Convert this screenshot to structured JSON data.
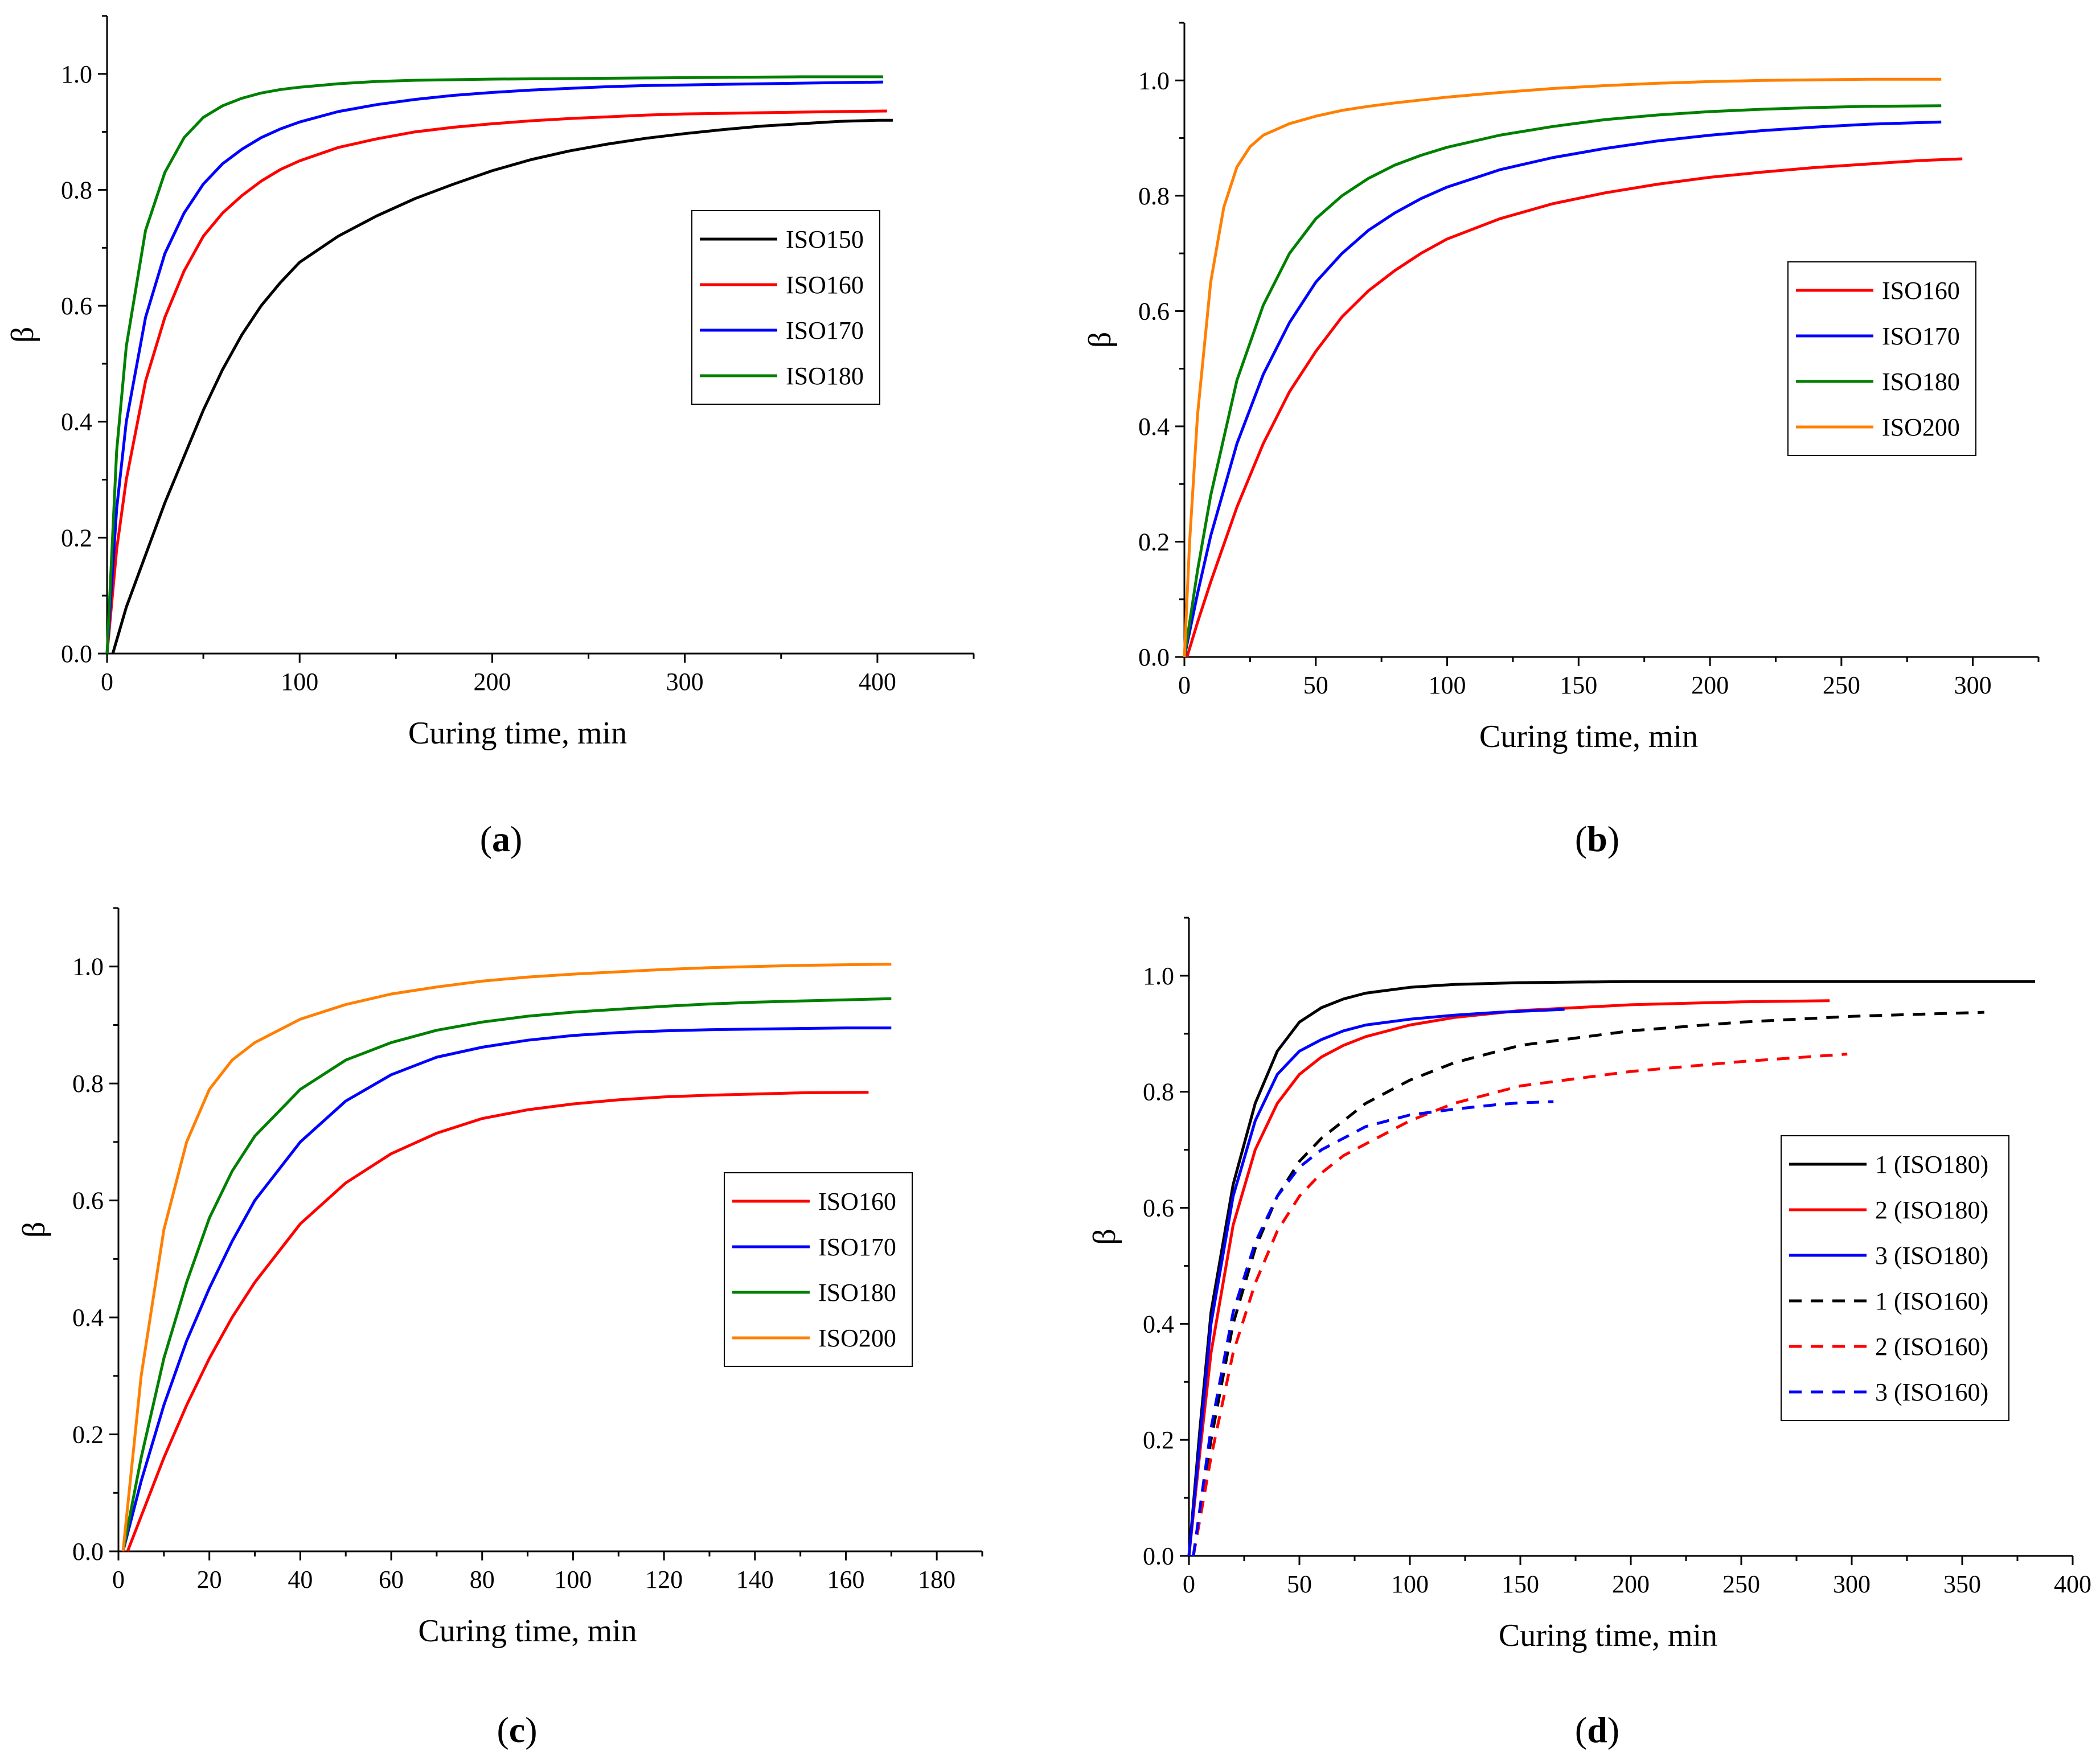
{
  "figure": {
    "panel_labels": [
      "a",
      "b",
      "c",
      "d"
    ]
  },
  "chart_data": [
    {
      "panel": "a",
      "type": "line",
      "xlabel": "Curing time, min",
      "ylabel": "β",
      "xlim": [
        0,
        450
      ],
      "ylim": [
        0,
        1.1
      ],
      "xticks": [
        0,
        100,
        200,
        300,
        400
      ],
      "yticks": [
        0.0,
        0.2,
        0.4,
        0.6,
        0.8,
        1.0
      ],
      "legend_position": "right-middle",
      "series": [
        {
          "name": "ISO150",
          "color": "#000000",
          "dash": false,
          "x": [
            3,
            10,
            20,
            30,
            40,
            50,
            60,
            70,
            80,
            90,
            100,
            120,
            140,
            160,
            180,
            200,
            220,
            240,
            260,
            280,
            300,
            320,
            340,
            360,
            380,
            400,
            408
          ],
          "y": [
            0,
            0.08,
            0.17,
            0.26,
            0.34,
            0.42,
            0.49,
            0.55,
            0.6,
            0.64,
            0.675,
            0.72,
            0.755,
            0.785,
            0.81,
            0.833,
            0.852,
            0.867,
            0.879,
            0.889,
            0.897,
            0.904,
            0.91,
            0.914,
            0.918,
            0.92,
            0.92
          ]
        },
        {
          "name": "ISO160",
          "color": "#ff0000",
          "dash": false,
          "x": [
            0,
            5,
            10,
            20,
            30,
            40,
            50,
            60,
            70,
            80,
            90,
            100,
            120,
            140,
            160,
            180,
            200,
            220,
            240,
            260,
            280,
            300,
            320,
            340,
            360,
            380,
            405
          ],
          "y": [
            0,
            0.18,
            0.3,
            0.47,
            0.58,
            0.66,
            0.72,
            0.76,
            0.79,
            0.815,
            0.835,
            0.85,
            0.873,
            0.888,
            0.9,
            0.908,
            0.914,
            0.919,
            0.923,
            0.926,
            0.929,
            0.931,
            0.932,
            0.933,
            0.934,
            0.935,
            0.936
          ]
        },
        {
          "name": "ISO170",
          "color": "#0000ff",
          "dash": false,
          "x": [
            0,
            5,
            10,
            20,
            30,
            40,
            50,
            60,
            70,
            80,
            90,
            100,
            120,
            140,
            160,
            180,
            200,
            220,
            240,
            260,
            280,
            300,
            320,
            340,
            360,
            380,
            403
          ],
          "y": [
            0,
            0.25,
            0.4,
            0.58,
            0.69,
            0.76,
            0.81,
            0.845,
            0.87,
            0.89,
            0.905,
            0.917,
            0.935,
            0.947,
            0.956,
            0.963,
            0.968,
            0.972,
            0.975,
            0.978,
            0.98,
            0.981,
            0.982,
            0.983,
            0.984,
            0.985,
            0.986
          ]
        },
        {
          "name": "ISO180",
          "color": "#008000",
          "dash": false,
          "x": [
            0,
            5,
            10,
            20,
            30,
            40,
            50,
            60,
            70,
            80,
            90,
            100,
            120,
            140,
            160,
            180,
            200,
            240,
            280,
            320,
            360,
            403
          ],
          "y": [
            0,
            0.35,
            0.53,
            0.73,
            0.83,
            0.89,
            0.925,
            0.945,
            0.958,
            0.967,
            0.973,
            0.977,
            0.983,
            0.987,
            0.989,
            0.99,
            0.991,
            0.992,
            0.993,
            0.994,
            0.995,
            0.995
          ]
        }
      ]
    },
    {
      "panel": "b",
      "type": "line",
      "xlabel": "Curing time, min",
      "ylabel": "β",
      "xlim": [
        0,
        325
      ],
      "ylim": [
        0,
        1.1
      ],
      "xticks": [
        0,
        50,
        100,
        150,
        200,
        250,
        300
      ],
      "yticks": [
        0.0,
        0.2,
        0.4,
        0.6,
        0.8,
        1.0
      ],
      "legend_position": "right-middle",
      "series": [
        {
          "name": "ISO160",
          "color": "#ff0000",
          "dash": false,
          "x": [
            1,
            5,
            10,
            20,
            30,
            40,
            50,
            60,
            70,
            80,
            90,
            100,
            120,
            140,
            160,
            180,
            200,
            220,
            240,
            260,
            280,
            296
          ],
          "y": [
            0,
            0.06,
            0.13,
            0.26,
            0.37,
            0.46,
            0.53,
            0.59,
            0.635,
            0.67,
            0.7,
            0.725,
            0.76,
            0.786,
            0.805,
            0.82,
            0.832,
            0.841,
            0.849,
            0.855,
            0.861,
            0.864
          ]
        },
        {
          "name": "ISO170",
          "color": "#0000ff",
          "dash": false,
          "x": [
            0,
            5,
            10,
            20,
            30,
            40,
            50,
            60,
            70,
            80,
            90,
            100,
            120,
            140,
            160,
            180,
            200,
            220,
            240,
            260,
            288
          ],
          "y": [
            0,
            0.11,
            0.21,
            0.37,
            0.49,
            0.58,
            0.65,
            0.7,
            0.74,
            0.77,
            0.795,
            0.815,
            0.845,
            0.866,
            0.882,
            0.895,
            0.905,
            0.913,
            0.919,
            0.924,
            0.928
          ]
        },
        {
          "name": "ISO180",
          "color": "#008000",
          "dash": false,
          "x": [
            0,
            5,
            10,
            20,
            30,
            40,
            50,
            60,
            70,
            80,
            90,
            100,
            120,
            140,
            160,
            180,
            200,
            220,
            240,
            260,
            288
          ],
          "y": [
            0,
            0.15,
            0.28,
            0.48,
            0.61,
            0.7,
            0.76,
            0.8,
            0.83,
            0.853,
            0.87,
            0.884,
            0.905,
            0.92,
            0.932,
            0.94,
            0.946,
            0.95,
            0.953,
            0.955,
            0.956
          ]
        },
        {
          "name": "ISO200",
          "color": "#ff8000",
          "dash": false,
          "x": [
            0,
            2,
            5,
            10,
            15,
            20,
            25,
            30,
            40,
            50,
            60,
            70,
            80,
            100,
            120,
            140,
            160,
            180,
            200,
            220,
            240,
            260,
            288
          ],
          "y": [
            0,
            0.2,
            0.42,
            0.65,
            0.78,
            0.85,
            0.885,
            0.905,
            0.925,
            0.938,
            0.948,
            0.955,
            0.961,
            0.971,
            0.979,
            0.986,
            0.991,
            0.995,
            0.998,
            1.0,
            1.001,
            1.002,
            1.002
          ]
        }
      ]
    },
    {
      "panel": "c",
      "type": "line",
      "xlabel": "Curing time, min",
      "ylabel": "β",
      "xlim": [
        0,
        190
      ],
      "ylim": [
        0,
        1.1
      ],
      "xticks": [
        0,
        20,
        40,
        60,
        80,
        100,
        120,
        140,
        160,
        180
      ],
      "yticks": [
        0.0,
        0.2,
        0.4,
        0.6,
        0.8,
        1.0
      ],
      "legend_position": "right-middle",
      "series": [
        {
          "name": "ISO160",
          "color": "#ff0000",
          "dash": false,
          "x": [
            2,
            5,
            10,
            15,
            20,
            25,
            30,
            40,
            50,
            60,
            70,
            80,
            90,
            100,
            110,
            120,
            130,
            140,
            150,
            165
          ],
          "y": [
            0,
            0.06,
            0.16,
            0.25,
            0.33,
            0.4,
            0.46,
            0.56,
            0.63,
            0.68,
            0.715,
            0.74,
            0.755,
            0.765,
            0.772,
            0.777,
            0.78,
            0.782,
            0.784,
            0.785
          ]
        },
        {
          "name": "ISO170",
          "color": "#0000ff",
          "dash": false,
          "x": [
            1,
            5,
            10,
            15,
            20,
            25,
            30,
            40,
            50,
            60,
            70,
            80,
            90,
            100,
            110,
            120,
            130,
            140,
            150,
            160,
            170
          ],
          "y": [
            0,
            0.12,
            0.25,
            0.36,
            0.45,
            0.53,
            0.6,
            0.7,
            0.77,
            0.815,
            0.845,
            0.862,
            0.874,
            0.882,
            0.887,
            0.89,
            0.892,
            0.893,
            0.894,
            0.895,
            0.895
          ]
        },
        {
          "name": "ISO180",
          "color": "#008000",
          "dash": false,
          "x": [
            1,
            5,
            10,
            15,
            20,
            25,
            30,
            40,
            50,
            60,
            70,
            80,
            90,
            100,
            110,
            120,
            130,
            140,
            150,
            160,
            170
          ],
          "y": [
            0,
            0.16,
            0.33,
            0.46,
            0.57,
            0.65,
            0.71,
            0.79,
            0.84,
            0.87,
            0.891,
            0.905,
            0.915,
            0.922,
            0.927,
            0.932,
            0.936,
            0.939,
            0.941,
            0.943,
            0.945
          ]
        },
        {
          "name": "ISO200",
          "color": "#ff8000",
          "dash": false,
          "x": [
            1,
            5,
            10,
            15,
            20,
            25,
            30,
            40,
            50,
            60,
            70,
            80,
            90,
            100,
            110,
            120,
            130,
            140,
            150,
            160,
            170
          ],
          "y": [
            0,
            0.3,
            0.55,
            0.7,
            0.79,
            0.84,
            0.87,
            0.91,
            0.935,
            0.953,
            0.965,
            0.975,
            0.982,
            0.987,
            0.991,
            0.995,
            0.998,
            1.0,
            1.002,
            1.003,
            1.004
          ]
        }
      ]
    },
    {
      "panel": "d",
      "type": "line",
      "xlabel": "Curing time, min",
      "ylabel": "β",
      "xlim": [
        0,
        400
      ],
      "ylim": [
        0,
        1.1
      ],
      "xticks": [
        0,
        50,
        100,
        150,
        200,
        250,
        300,
        350,
        400
      ],
      "yticks": [
        0.0,
        0.2,
        0.4,
        0.6,
        0.8,
        1.0
      ],
      "legend_position": "right-lower",
      "series": [
        {
          "name": "1 (ISO180)",
          "color": "#000000",
          "dash": false,
          "x": [
            0,
            5,
            10,
            20,
            30,
            40,
            50,
            60,
            70,
            80,
            100,
            120,
            150,
            200,
            250,
            300,
            350,
            383
          ],
          "y": [
            0,
            0.22,
            0.42,
            0.64,
            0.78,
            0.87,
            0.92,
            0.945,
            0.96,
            0.97,
            0.98,
            0.985,
            0.988,
            0.99,
            0.99,
            0.99,
            0.99,
            0.99
          ]
        },
        {
          "name": "2 (ISO180)",
          "color": "#ff0000",
          "dash": false,
          "x": [
            0,
            5,
            10,
            20,
            30,
            40,
            50,
            60,
            70,
            80,
            100,
            120,
            150,
            200,
            250,
            290
          ],
          "y": [
            0,
            0.18,
            0.35,
            0.57,
            0.7,
            0.78,
            0.83,
            0.86,
            0.88,
            0.895,
            0.915,
            0.928,
            0.94,
            0.95,
            0.955,
            0.957
          ]
        },
        {
          "name": "3 (ISO180)",
          "color": "#0000ff",
          "dash": false,
          "x": [
            0,
            5,
            10,
            20,
            30,
            40,
            50,
            60,
            70,
            80,
            100,
            120,
            140,
            170
          ],
          "y": [
            0,
            0.2,
            0.4,
            0.62,
            0.75,
            0.83,
            0.87,
            0.89,
            0.905,
            0.915,
            0.925,
            0.932,
            0.937,
            0.942
          ]
        },
        {
          "name": "1 (ISO160)",
          "color": "#000000",
          "dash": true,
          "x": [
            2,
            10,
            20,
            30,
            40,
            50,
            60,
            70,
            80,
            100,
            120,
            150,
            200,
            250,
            300,
            360
          ],
          "y": [
            0,
            0.2,
            0.4,
            0.53,
            0.62,
            0.68,
            0.72,
            0.75,
            0.78,
            0.82,
            0.85,
            0.88,
            0.905,
            0.92,
            0.93,
            0.937
          ]
        },
        {
          "name": "2 (ISO160)",
          "color": "#ff0000",
          "dash": true,
          "x": [
            2,
            10,
            20,
            30,
            40,
            50,
            60,
            70,
            80,
            100,
            120,
            150,
            200,
            250,
            298
          ],
          "y": [
            0,
            0.17,
            0.35,
            0.47,
            0.56,
            0.62,
            0.66,
            0.69,
            0.71,
            0.75,
            0.78,
            0.81,
            0.835,
            0.852,
            0.865
          ]
        },
        {
          "name": "3 (ISO160)",
          "color": "#0000ff",
          "dash": true,
          "x": [
            2,
            10,
            20,
            30,
            40,
            50,
            60,
            70,
            80,
            90,
            100,
            110,
            120,
            140,
            150,
            165
          ],
          "y": [
            0,
            0.22,
            0.42,
            0.54,
            0.62,
            0.67,
            0.7,
            0.72,
            0.74,
            0.75,
            0.76,
            0.765,
            0.77,
            0.778,
            0.781,
            0.783
          ]
        }
      ]
    }
  ]
}
